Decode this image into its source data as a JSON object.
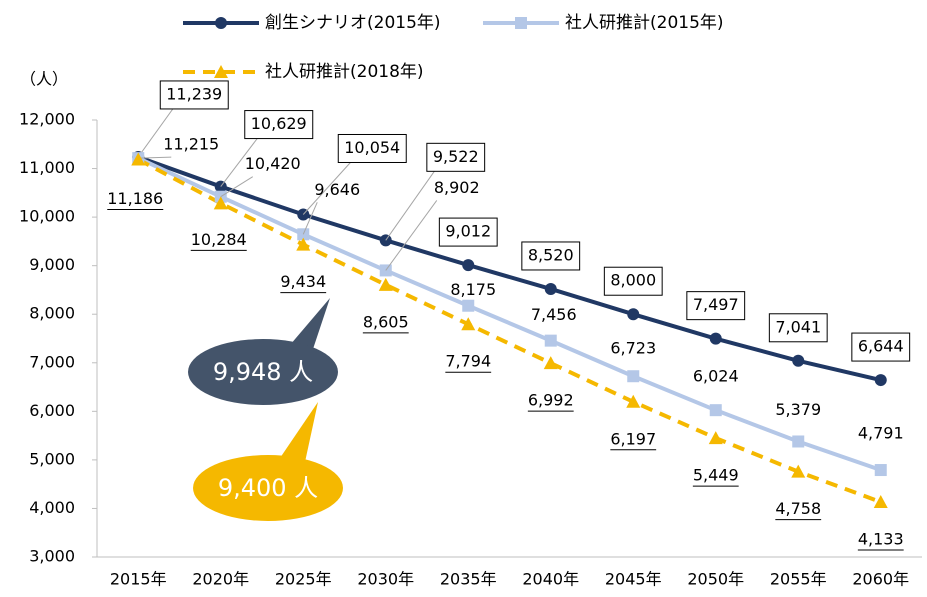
{
  "chart_data": {
    "type": "line",
    "y_label": "（人）",
    "categories": [
      "2015年",
      "2020年",
      "2025年",
      "2030年",
      "2035年",
      "2040年",
      "2045年",
      "2050年",
      "2055年",
      "2060年"
    ],
    "series": [
      {
        "name": "創生シナリオ(2015年)",
        "color": "#203864",
        "marker": "circle",
        "dashed": false,
        "label_style": "box",
        "values": [
          11239,
          10629,
          10054,
          9522,
          9012,
          8520,
          8000,
          7497,
          7041,
          6644
        ],
        "value_labels": [
          "11,239",
          "10,629",
          "10,054",
          "9,522",
          "9,012",
          "8,520",
          "8,000",
          "7,497",
          "7,041",
          "6,644"
        ]
      },
      {
        "name": "社人研推計(2015年)",
        "color": "#b4c7e7",
        "marker": "square",
        "dashed": false,
        "label_style": "plain",
        "values": [
          11215,
          10420,
          9646,
          8902,
          8175,
          7456,
          6723,
          6024,
          5379,
          4791
        ],
        "value_labels": [
          "11,215",
          "10,420",
          "9,646",
          "8,902",
          "8,175",
          "7,456",
          "6,723",
          "6,024",
          "5,379",
          "4,791"
        ]
      },
      {
        "name": "社人研推計(2018年)",
        "color": "#f5b800",
        "marker": "triangle",
        "dashed": true,
        "label_style": "underline",
        "values": [
          11186,
          10284,
          9434,
          8605,
          7794,
          6992,
          6197,
          5449,
          4758,
          4133
        ],
        "value_labels": [
          "11,186",
          "10,284",
          "9,434",
          "8,605",
          "7,794",
          "6,992",
          "6,197",
          "5,449",
          "4,758",
          "4,133"
        ]
      }
    ],
    "ylim": [
      3000,
      12000
    ],
    "yticks": [
      {
        "value": 3000,
        "label": "3,000"
      },
      {
        "value": 4000,
        "label": "4,000"
      },
      {
        "value": 5000,
        "label": "5,000"
      },
      {
        "value": 6000,
        "label": "6,000"
      },
      {
        "value": 7000,
        "label": "7,000"
      },
      {
        "value": 8000,
        "label": "8,000"
      },
      {
        "value": 9000,
        "label": "9,000"
      },
      {
        "value": 10000,
        "label": "10,000"
      },
      {
        "value": 11000,
        "label": "11,000"
      },
      {
        "value": 12000,
        "label": "12,000"
      }
    ],
    "grid": false,
    "annotations": [
      {
        "text": "9,948 人",
        "color": "#44546a"
      },
      {
        "text": "9,400 人",
        "color": "#f5b800"
      }
    ]
  }
}
